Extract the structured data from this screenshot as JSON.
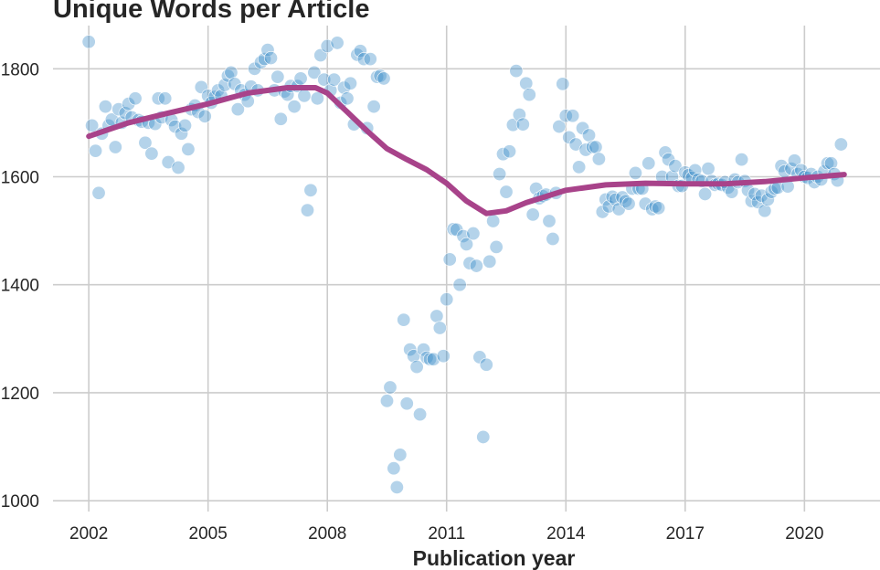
{
  "chart_data": {
    "type": "scatter",
    "title": "Unique Words per Article",
    "xlabel": "Publication year",
    "ylabel": "",
    "xlim": [
      2001.1,
      2021.9
    ],
    "ylim": [
      980,
      1880
    ],
    "xticks": [
      2002,
      2005,
      2008,
      2011,
      2014,
      2017,
      2020
    ],
    "yticks": [
      1000,
      1200,
      1400,
      1600,
      1800
    ],
    "grid": true,
    "legend": "none",
    "colors": {
      "points": "#3a8cc7",
      "trend": "#a8438a",
      "grid": "#cccccc"
    },
    "series": [
      {
        "kind": "scatter",
        "points": [
          [
            2002.0,
            1850
          ],
          [
            2002.08,
            1695
          ],
          [
            2002.17,
            1648
          ],
          [
            2002.25,
            1570
          ],
          [
            2002.33,
            1680
          ],
          [
            2002.42,
            1730
          ],
          [
            2002.5,
            1695
          ],
          [
            2002.58,
            1706
          ],
          [
            2002.67,
            1655
          ],
          [
            2002.75,
            1725
          ],
          [
            2002.83,
            1700
          ],
          [
            2002.92,
            1718
          ],
          [
            2003.0,
            1735
          ],
          [
            2003.08,
            1710
          ],
          [
            2003.17,
            1745
          ],
          [
            2003.25,
            1705
          ],
          [
            2003.33,
            1702
          ],
          [
            2003.42,
            1663
          ],
          [
            2003.5,
            1700
          ],
          [
            2003.58,
            1643
          ],
          [
            2003.67,
            1698
          ],
          [
            2003.75,
            1745
          ],
          [
            2003.83,
            1710
          ],
          [
            2003.92,
            1745
          ],
          [
            2004.0,
            1627
          ],
          [
            2004.08,
            1705
          ],
          [
            2004.17,
            1693
          ],
          [
            2004.25,
            1617
          ],
          [
            2004.33,
            1680
          ],
          [
            2004.42,
            1695
          ],
          [
            2004.5,
            1651
          ],
          [
            2004.58,
            1725
          ],
          [
            2004.67,
            1732
          ],
          [
            2004.75,
            1720
          ],
          [
            2004.83,
            1766
          ],
          [
            2004.92,
            1712
          ],
          [
            2005.0,
            1750
          ],
          [
            2005.08,
            1737
          ],
          [
            2005.17,
            1748
          ],
          [
            2005.25,
            1760
          ],
          [
            2005.33,
            1750
          ],
          [
            2005.42,
            1770
          ],
          [
            2005.5,
            1787
          ],
          [
            2005.58,
            1793
          ],
          [
            2005.67,
            1772
          ],
          [
            2005.75,
            1725
          ],
          [
            2005.83,
            1760
          ],
          [
            2005.92,
            1752
          ],
          [
            2006.0,
            1740
          ],
          [
            2006.08,
            1767
          ],
          [
            2006.17,
            1800
          ],
          [
            2006.25,
            1760
          ],
          [
            2006.33,
            1812
          ],
          [
            2006.42,
            1818
          ],
          [
            2006.5,
            1835
          ],
          [
            2006.58,
            1820
          ],
          [
            2006.67,
            1760
          ],
          [
            2006.75,
            1785
          ],
          [
            2006.83,
            1707
          ],
          [
            2006.92,
            1758
          ],
          [
            2007.0,
            1752
          ],
          [
            2007.08,
            1768
          ],
          [
            2007.17,
            1730
          ],
          [
            2007.25,
            1768
          ],
          [
            2007.33,
            1782
          ],
          [
            2007.42,
            1750
          ],
          [
            2007.5,
            1538
          ],
          [
            2007.58,
            1575
          ],
          [
            2007.67,
            1793
          ],
          [
            2007.75,
            1745
          ],
          [
            2007.83,
            1825
          ],
          [
            2007.92,
            1780
          ],
          [
            2008.0,
            1842
          ],
          [
            2008.08,
            1760
          ],
          [
            2008.17,
            1780
          ],
          [
            2008.25,
            1848
          ],
          [
            2008.33,
            1737
          ],
          [
            2008.42,
            1765
          ],
          [
            2008.5,
            1745
          ],
          [
            2008.58,
            1773
          ],
          [
            2008.67,
            1697
          ],
          [
            2008.75,
            1826
          ],
          [
            2008.83,
            1833
          ],
          [
            2008.92,
            1818
          ],
          [
            2009.0,
            1690
          ],
          [
            2009.08,
            1818
          ],
          [
            2009.17,
            1730
          ],
          [
            2009.25,
            1785
          ],
          [
            2009.33,
            1787
          ],
          [
            2009.42,
            1782
          ],
          [
            2009.5,
            1185
          ],
          [
            2009.58,
            1210
          ],
          [
            2009.67,
            1060
          ],
          [
            2009.75,
            1025
          ],
          [
            2009.83,
            1085
          ],
          [
            2009.92,
            1335
          ],
          [
            2010.0,
            1180
          ],
          [
            2010.08,
            1280
          ],
          [
            2010.17,
            1268
          ],
          [
            2010.25,
            1248
          ],
          [
            2010.33,
            1160
          ],
          [
            2010.42,
            1280
          ],
          [
            2010.5,
            1265
          ],
          [
            2010.58,
            1262
          ],
          [
            2010.67,
            1262
          ],
          [
            2010.75,
            1342
          ],
          [
            2010.83,
            1320
          ],
          [
            2010.92,
            1268
          ],
          [
            2011.0,
            1373
          ],
          [
            2011.08,
            1447
          ],
          [
            2011.17,
            1503
          ],
          [
            2011.25,
            1502
          ],
          [
            2011.33,
            1400
          ],
          [
            2011.42,
            1490
          ],
          [
            2011.5,
            1475
          ],
          [
            2011.58,
            1440
          ],
          [
            2011.67,
            1495
          ],
          [
            2011.75,
            1435
          ],
          [
            2011.83,
            1266
          ],
          [
            2011.92,
            1118
          ],
          [
            2012.0,
            1252
          ],
          [
            2012.08,
            1443
          ],
          [
            2012.17,
            1518
          ],
          [
            2012.25,
            1470
          ],
          [
            2012.33,
            1605
          ],
          [
            2012.42,
            1642
          ],
          [
            2012.5,
            1572
          ],
          [
            2012.58,
            1647
          ],
          [
            2012.67,
            1696
          ],
          [
            2012.75,
            1796
          ],
          [
            2012.83,
            1715
          ],
          [
            2012.92,
            1697
          ],
          [
            2013.0,
            1773
          ],
          [
            2013.08,
            1752
          ],
          [
            2013.17,
            1530
          ],
          [
            2013.25,
            1578
          ],
          [
            2013.33,
            1560
          ],
          [
            2013.42,
            1564
          ],
          [
            2013.5,
            1567
          ],
          [
            2013.58,
            1518
          ],
          [
            2013.67,
            1485
          ],
          [
            2013.75,
            1570
          ],
          [
            2013.83,
            1693
          ],
          [
            2013.92,
            1772
          ],
          [
            2014.0,
            1713
          ],
          [
            2014.08,
            1673
          ],
          [
            2014.17,
            1713
          ],
          [
            2014.25,
            1660
          ],
          [
            2014.33,
            1618
          ],
          [
            2014.42,
            1690
          ],
          [
            2014.5,
            1650
          ],
          [
            2014.58,
            1677
          ],
          [
            2014.67,
            1655
          ],
          [
            2014.75,
            1655
          ],
          [
            2014.83,
            1633
          ],
          [
            2014.92,
            1535
          ],
          [
            2015.0,
            1558
          ],
          [
            2015.08,
            1545
          ],
          [
            2015.17,
            1563
          ],
          [
            2015.25,
            1558
          ],
          [
            2015.33,
            1540
          ],
          [
            2015.42,
            1562
          ],
          [
            2015.5,
            1555
          ],
          [
            2015.58,
            1550
          ],
          [
            2015.67,
            1578
          ],
          [
            2015.75,
            1607
          ],
          [
            2015.83,
            1578
          ],
          [
            2015.92,
            1578
          ],
          [
            2016.0,
            1550
          ],
          [
            2016.08,
            1625
          ],
          [
            2016.17,
            1540
          ],
          [
            2016.25,
            1545
          ],
          [
            2016.33,
            1542
          ],
          [
            2016.42,
            1600
          ],
          [
            2016.5,
            1645
          ],
          [
            2016.58,
            1632
          ],
          [
            2016.67,
            1600
          ],
          [
            2016.75,
            1620
          ],
          [
            2016.83,
            1583
          ],
          [
            2016.92,
            1583
          ],
          [
            2017.0,
            1608
          ],
          [
            2017.08,
            1603
          ],
          [
            2017.17,
            1598
          ],
          [
            2017.25,
            1612
          ],
          [
            2017.33,
            1595
          ],
          [
            2017.42,
            1592
          ],
          [
            2017.5,
            1568
          ],
          [
            2017.58,
            1615
          ],
          [
            2017.67,
            1592
          ],
          [
            2017.75,
            1585
          ],
          [
            2017.83,
            1587
          ],
          [
            2017.92,
            1585
          ],
          [
            2018.0,
            1590
          ],
          [
            2018.08,
            1580
          ],
          [
            2018.17,
            1572
          ],
          [
            2018.25,
            1595
          ],
          [
            2018.33,
            1590
          ],
          [
            2018.42,
            1632
          ],
          [
            2018.5,
            1592
          ],
          [
            2018.58,
            1575
          ],
          [
            2018.67,
            1555
          ],
          [
            2018.75,
            1568
          ],
          [
            2018.83,
            1553
          ],
          [
            2018.92,
            1565
          ],
          [
            2019.0,
            1537
          ],
          [
            2019.08,
            1558
          ],
          [
            2019.17,
            1572
          ],
          [
            2019.25,
            1578
          ],
          [
            2019.33,
            1580
          ],
          [
            2019.42,
            1620
          ],
          [
            2019.5,
            1610
          ],
          [
            2019.58,
            1582
          ],
          [
            2019.67,
            1615
          ],
          [
            2019.75,
            1630
          ],
          [
            2019.83,
            1605
          ],
          [
            2019.92,
            1612
          ],
          [
            2020.0,
            1600
          ],
          [
            2020.08,
            1598
          ],
          [
            2020.17,
            1605
          ],
          [
            2020.25,
            1590
          ],
          [
            2020.33,
            1600
          ],
          [
            2020.42,
            1595
          ],
          [
            2020.5,
            1610
          ],
          [
            2020.58,
            1625
          ],
          [
            2020.67,
            1625
          ],
          [
            2020.75,
            1605
          ],
          [
            2020.83,
            1593
          ],
          [
            2020.92,
            1660
          ]
        ]
      },
      {
        "kind": "line",
        "points": [
          [
            2002.0,
            1675
          ],
          [
            2003.0,
            1700
          ],
          [
            2004.0,
            1718
          ],
          [
            2005.0,
            1735
          ],
          [
            2006.0,
            1755
          ],
          [
            2007.0,
            1765
          ],
          [
            2007.7,
            1765
          ],
          [
            2008.0,
            1755
          ],
          [
            2008.5,
            1720
          ],
          [
            2009.0,
            1685
          ],
          [
            2009.5,
            1652
          ],
          [
            2010.0,
            1632
          ],
          [
            2010.5,
            1613
          ],
          [
            2011.0,
            1588
          ],
          [
            2011.5,
            1555
          ],
          [
            2012.0,
            1532
          ],
          [
            2012.5,
            1537
          ],
          [
            2013.0,
            1552
          ],
          [
            2014.0,
            1575
          ],
          [
            2015.0,
            1585
          ],
          [
            2016.0,
            1588
          ],
          [
            2017.0,
            1587
          ],
          [
            2018.0,
            1587
          ],
          [
            2019.0,
            1591
          ],
          [
            2020.0,
            1598
          ],
          [
            2021.0,
            1604
          ]
        ]
      }
    ]
  }
}
